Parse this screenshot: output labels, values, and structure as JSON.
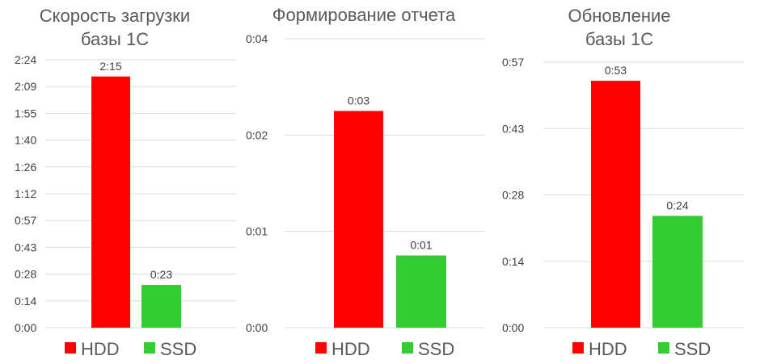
{
  "colors": {
    "hdd": "#ff0000",
    "ssd": "#33cc33",
    "grid": "#d9d9d9",
    "text": "#404040",
    "title": "#595959"
  },
  "chart_data": [
    {
      "type": "bar",
      "title_lines": [
        "Скорость загрузки",
        "базы 1С"
      ],
      "categories": [
        "HDD",
        "SSD"
      ],
      "values": [
        135,
        23
      ],
      "value_unit": "seconds",
      "data_labels": [
        "2:15",
        "0:23"
      ],
      "ylim": [
        0,
        144
      ],
      "yticks": [
        "0:00",
        "0:14",
        "0:28",
        "0:43",
        "0:57",
        "1:12",
        "1:26",
        "1:40",
        "1:55",
        "2:09",
        "2:24"
      ],
      "legend": [
        "HDD",
        "SSD"
      ],
      "legend_position": "bottom",
      "grid": true
    },
    {
      "type": "bar",
      "title_lines": [
        "Формирование отчета"
      ],
      "categories": [
        "HDD",
        "SSD"
      ],
      "values": [
        3,
        1
      ],
      "value_unit": "seconds",
      "data_labels": [
        "0:03",
        "0:01"
      ],
      "ylim": [
        0,
        4
      ],
      "yticks": [
        "0:00",
        "0:01",
        "0:02",
        "0:04"
      ],
      "legend": [
        "HDD",
        "SSD"
      ],
      "legend_position": "bottom",
      "grid": true
    },
    {
      "type": "bar",
      "title_lines": [
        "Обновление",
        "базы 1С"
      ],
      "categories": [
        "HDD",
        "SSD"
      ],
      "values": [
        53,
        24
      ],
      "value_unit": "seconds",
      "data_labels": [
        "0:53",
        "0:24"
      ],
      "ylim": [
        0,
        57
      ],
      "yticks": [
        "0:00",
        "0:14",
        "0:28",
        "0:43",
        "0:57"
      ],
      "legend": [
        "HDD",
        "SSD"
      ],
      "legend_position": "bottom",
      "grid": true
    }
  ]
}
